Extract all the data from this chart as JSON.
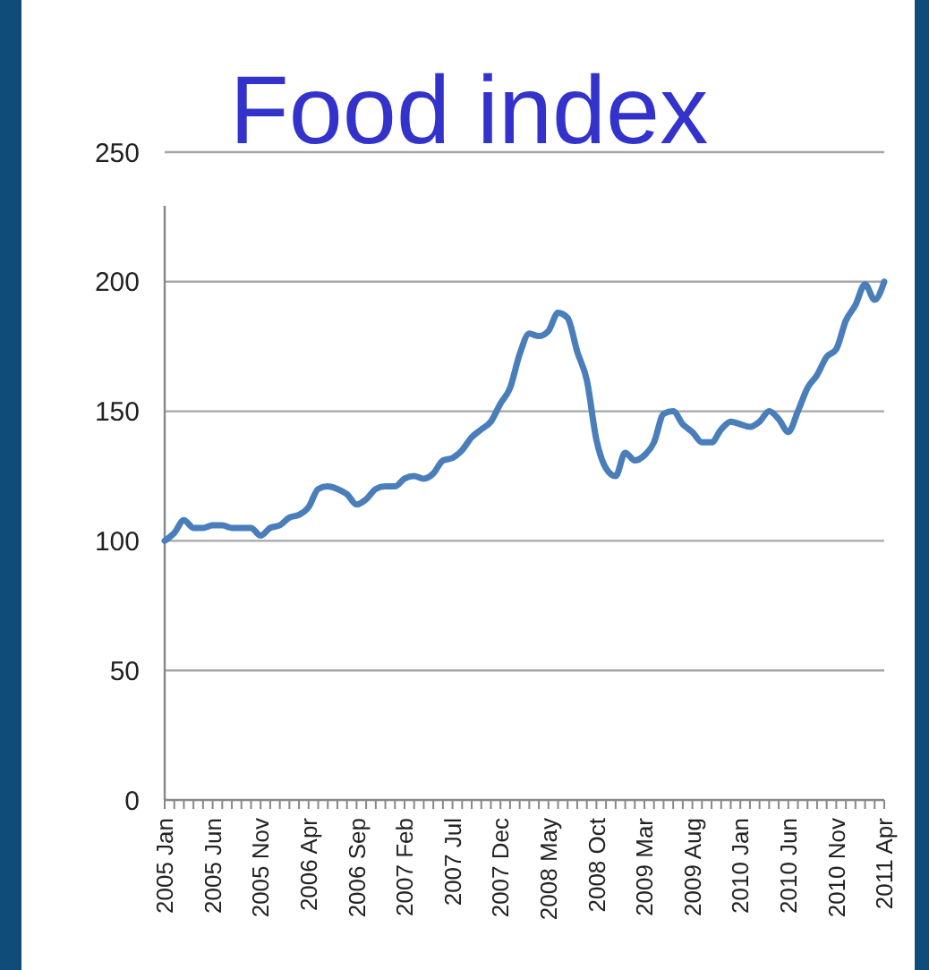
{
  "chart_data": {
    "type": "line",
    "title": "Food index",
    "categories": [
      "2005 Jan",
      null,
      null,
      null,
      null,
      "2005 Jun",
      null,
      null,
      null,
      null,
      "2005 Nov",
      null,
      null,
      null,
      null,
      "2006 Apr",
      null,
      null,
      null,
      null,
      "2006 Sep",
      null,
      null,
      null,
      null,
      "2007 Feb",
      null,
      null,
      null,
      null,
      "2007 Jul",
      null,
      null,
      null,
      null,
      "2007 Dec",
      null,
      null,
      null,
      null,
      "2008 May",
      null,
      null,
      null,
      null,
      "2008 Oct",
      null,
      null,
      null,
      null,
      "2009 Mar",
      null,
      null,
      null,
      null,
      "2009 Aug",
      null,
      null,
      null,
      null,
      "2010 Jan",
      null,
      null,
      null,
      null,
      "2010 Jun",
      null,
      null,
      null,
      null,
      "2010 Nov",
      null,
      null,
      null,
      null,
      "2011 Apr"
    ],
    "series": [
      {
        "color": "#4a7ebb",
        "values": [
          100,
          103,
          108,
          105,
          105,
          106,
          106,
          105,
          105,
          105,
          102,
          105,
          106,
          109,
          110,
          113,
          120,
          121,
          120,
          118,
          114,
          116,
          120,
          121,
          121,
          124,
          125,
          124,
          126,
          131,
          132,
          135,
          140,
          143,
          146,
          153,
          159,
          172,
          180,
          179,
          181,
          188,
          186,
          173,
          162,
          139,
          128,
          125,
          134,
          131,
          133,
          138,
          149,
          150,
          145,
          142,
          138,
          138,
          143,
          146,
          145,
          144,
          146,
          150,
          147,
          142,
          150,
          159,
          164,
          171,
          174,
          185,
          191,
          199,
          193,
          200
        ]
      }
    ],
    "ylim": [
      0,
      250
    ],
    "yticks": [
      0,
      50,
      100,
      150,
      200,
      250
    ],
    "grid": "y",
    "marker": "none",
    "line_style": "solid"
  }
}
